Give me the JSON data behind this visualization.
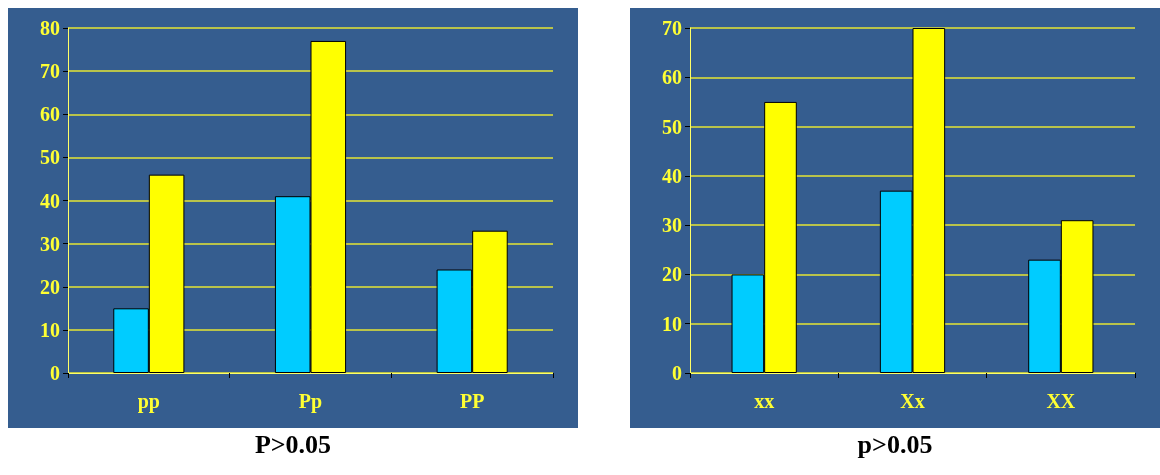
{
  "chart_data": [
    {
      "type": "bar",
      "categories": [
        "pp",
        "Pp",
        "PP"
      ],
      "series": [
        {
          "color": "#00ccff",
          "values": [
            15,
            41,
            24
          ]
        },
        {
          "color": "#ffff00",
          "values": [
            46,
            77,
            33
          ]
        }
      ],
      "ylim": [
        0,
        80
      ],
      "yticks": [
        0,
        10,
        20,
        30,
        40,
        50,
        60,
        70,
        80
      ],
      "grid": "y",
      "annotations": [
        "P>0.05"
      ]
    },
    {
      "type": "bar",
      "categories": [
        "xx",
        "Xx",
        "XX"
      ],
      "series": [
        {
          "color": "#00ccff",
          "values": [
            20,
            37,
            23
          ]
        },
        {
          "color": "#ffff00",
          "values": [
            55,
            70,
            31
          ]
        }
      ],
      "ylim": [
        0,
        70
      ],
      "yticks": [
        0,
        10,
        20,
        30,
        40,
        50,
        60,
        70
      ],
      "grid": "y",
      "annotations": [
        "p>0.05"
      ]
    }
  ]
}
